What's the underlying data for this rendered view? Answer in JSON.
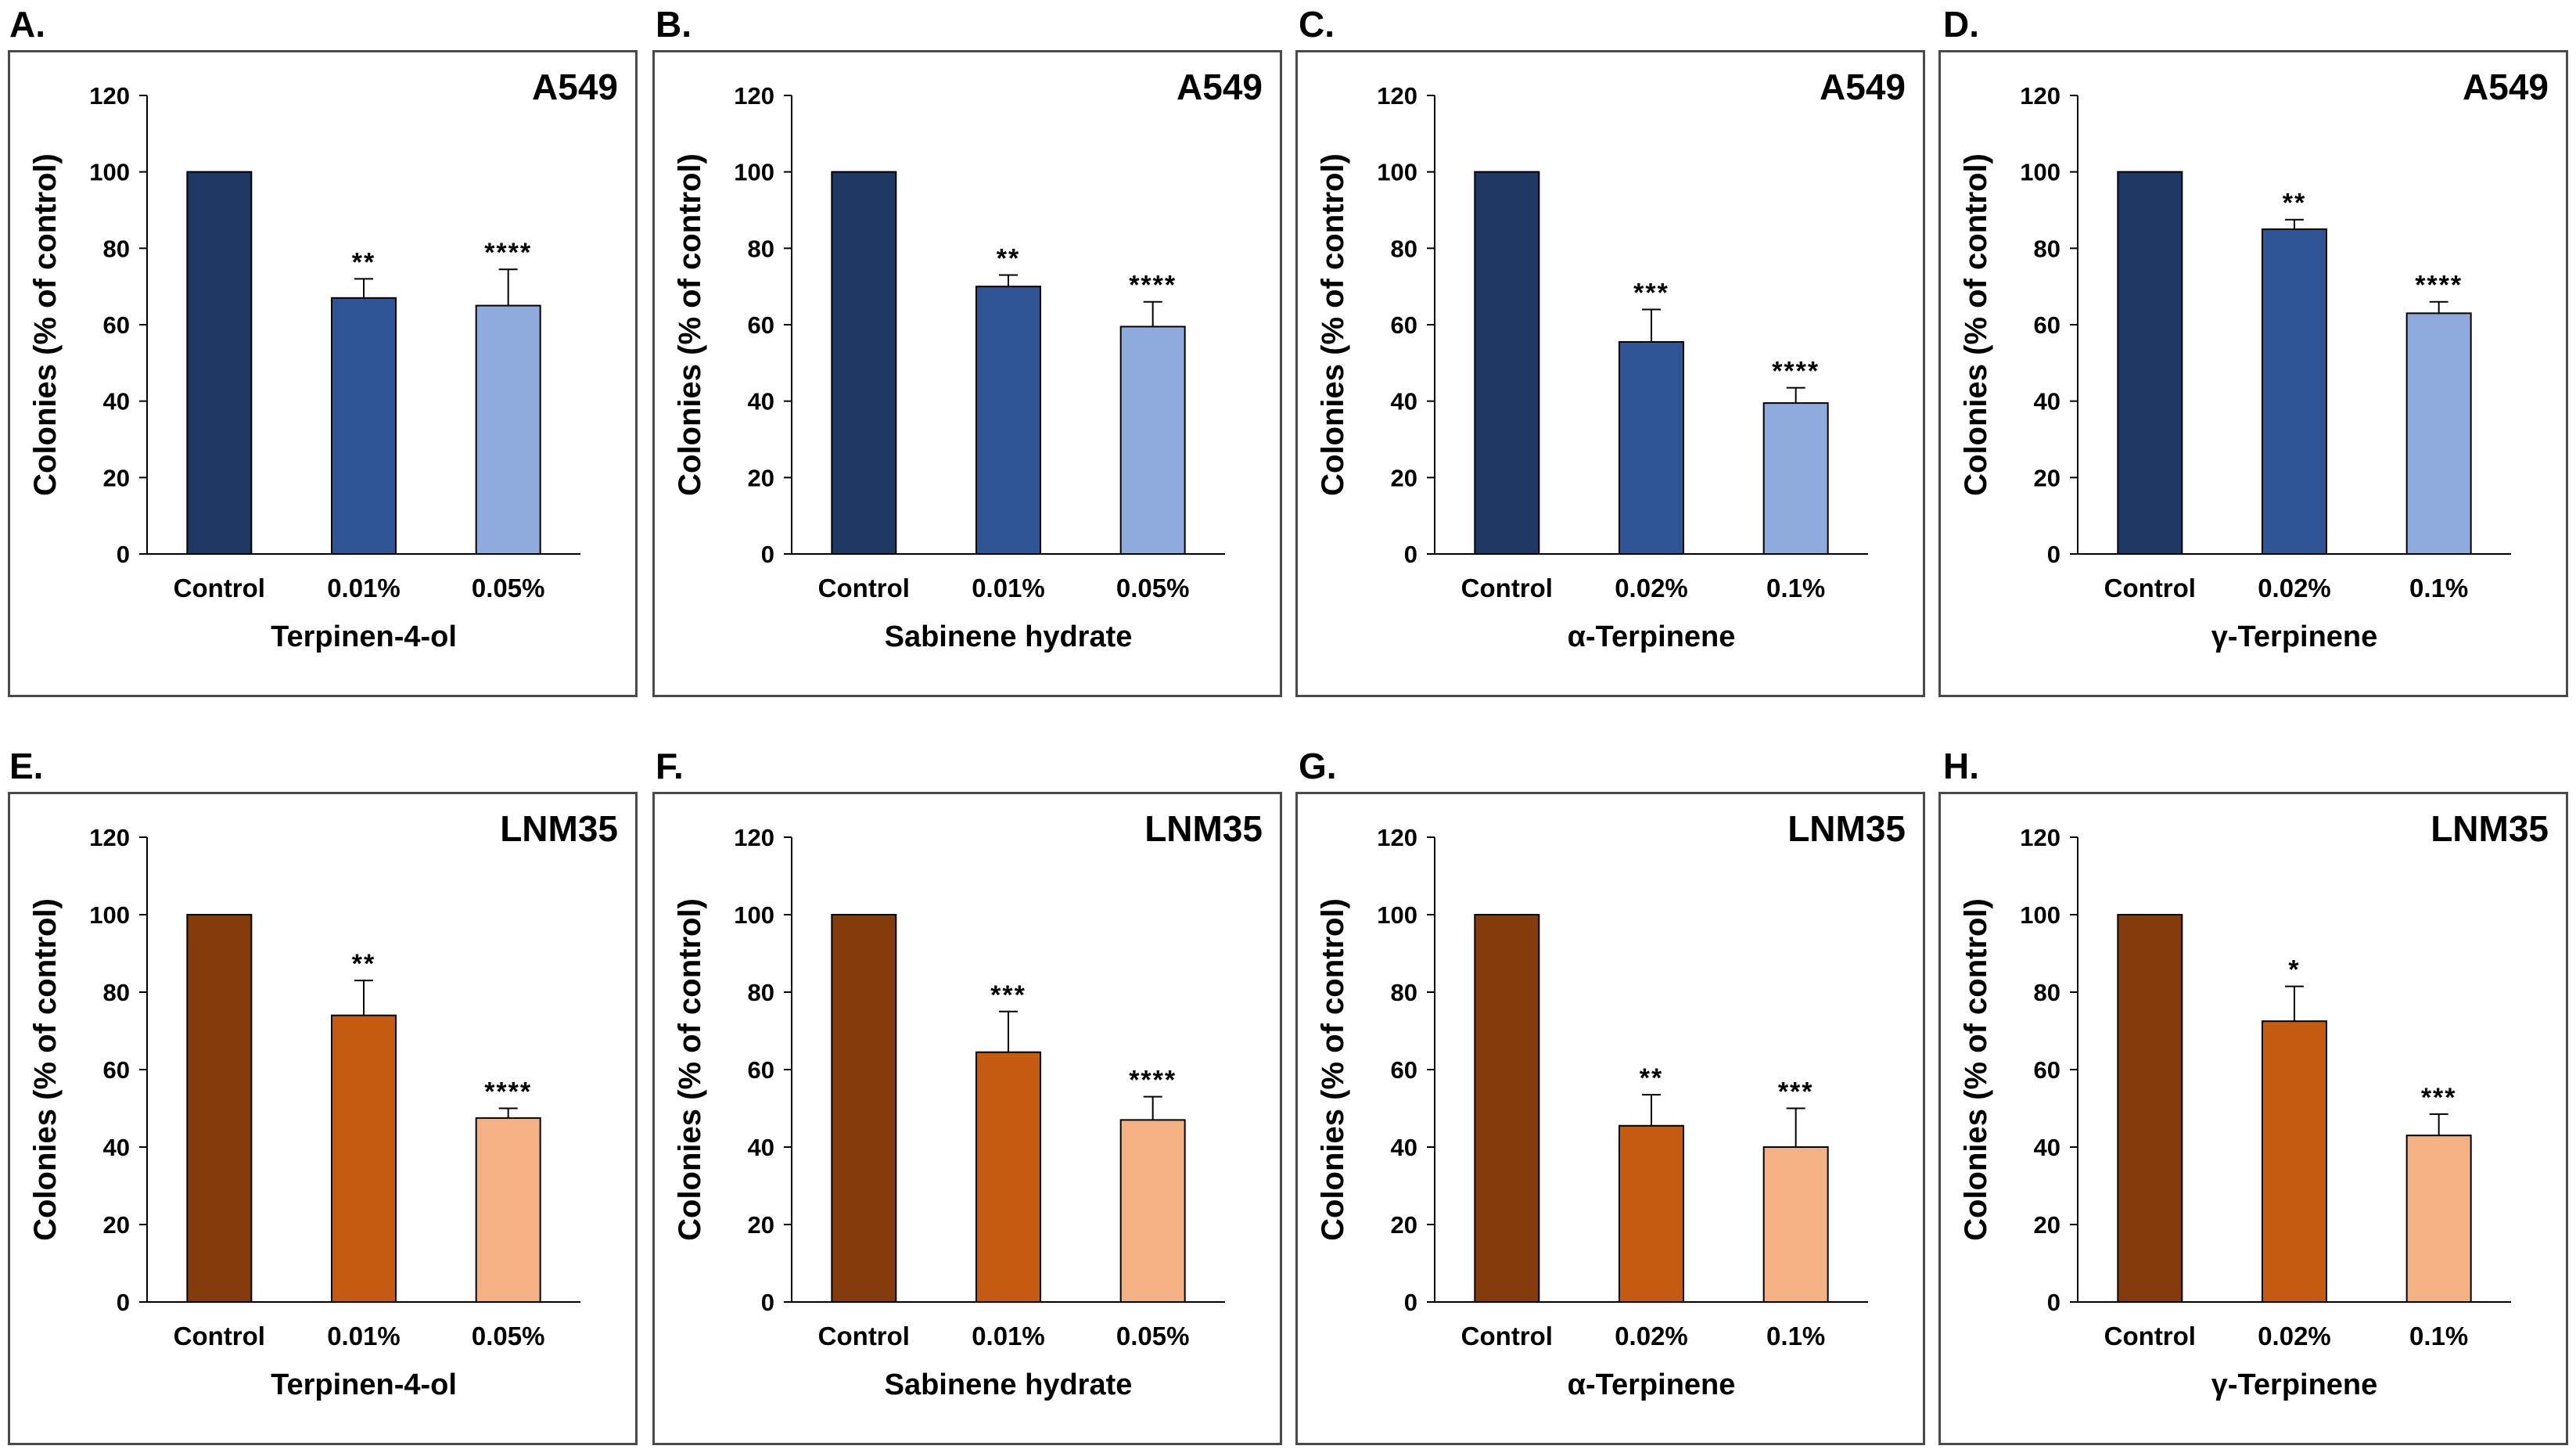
{
  "chart_data": [
    {
      "panel": "A.",
      "type": "bar",
      "cell_line": "A549",
      "xlabel": "Terpinen-4-ol",
      "ylabel": "Colonies (% of control)",
      "ylim": [
        0,
        120
      ],
      "yticks": [
        0,
        20,
        40,
        60,
        80,
        100,
        120
      ],
      "categories": [
        "Control",
        "0.01%",
        "0.05%"
      ],
      "values": [
        100,
        67,
        65
      ],
      "errors": [
        0,
        5,
        9.5
      ],
      "significance": [
        "",
        "**",
        "****"
      ],
      "colors": [
        "#1f3864",
        "#2f5597",
        "#8faadc"
      ]
    },
    {
      "panel": "B.",
      "type": "bar",
      "cell_line": "A549",
      "xlabel": "Sabinene hydrate",
      "ylabel": "Colonies (% of control)",
      "ylim": [
        0,
        120
      ],
      "yticks": [
        0,
        20,
        40,
        60,
        80,
        100,
        120
      ],
      "categories": [
        "Control",
        "0.01%",
        "0.05%"
      ],
      "values": [
        100,
        70,
        59.5
      ],
      "errors": [
        0,
        3,
        6.5
      ],
      "significance": [
        "",
        "**",
        "****"
      ],
      "colors": [
        "#1f3864",
        "#2f5597",
        "#8faadc"
      ]
    },
    {
      "panel": "C.",
      "type": "bar",
      "cell_line": "A549",
      "xlabel": "α-Terpinene",
      "ylabel": "Colonies (% of control)",
      "ylim": [
        0,
        120
      ],
      "yticks": [
        0,
        20,
        40,
        60,
        80,
        100,
        120
      ],
      "categories": [
        "Control",
        "0.02%",
        "0.1%"
      ],
      "values": [
        100,
        55.5,
        39.5
      ],
      "errors": [
        0,
        8.5,
        4
      ],
      "significance": [
        "",
        "***",
        "****"
      ],
      "colors": [
        "#1f3864",
        "#2f5597",
        "#8faadc"
      ]
    },
    {
      "panel": "D.",
      "type": "bar",
      "cell_line": "A549",
      "xlabel": "γ-Terpinene",
      "ylabel": "Colonies (% of control)",
      "ylim": [
        0,
        120
      ],
      "yticks": [
        0,
        20,
        40,
        60,
        80,
        100,
        120
      ],
      "categories": [
        "Control",
        "0.02%",
        "0.1%"
      ],
      "values": [
        100,
        85,
        63
      ],
      "errors": [
        0,
        2.5,
        3
      ],
      "significance": [
        "",
        "**",
        "****"
      ],
      "colors": [
        "#1f3864",
        "#2f5597",
        "#8faadc"
      ]
    },
    {
      "panel": "E.",
      "type": "bar",
      "cell_line": "LNM35",
      "xlabel": "Terpinen-4-ol",
      "ylabel": "Colonies (% of control)",
      "ylim": [
        0,
        120
      ],
      "yticks": [
        0,
        20,
        40,
        60,
        80,
        100,
        120
      ],
      "categories": [
        "Control",
        "0.01%",
        "0.05%"
      ],
      "values": [
        100,
        74,
        47.5
      ],
      "errors": [
        0,
        9,
        2.5
      ],
      "significance": [
        "",
        "**",
        "****"
      ],
      "colors": [
        "#843c0c",
        "#c55a11",
        "#f4b183"
      ]
    },
    {
      "panel": "F.",
      "type": "bar",
      "cell_line": "LNM35",
      "xlabel": "Sabinene hydrate",
      "ylabel": "Colonies (% of control)",
      "ylim": [
        0,
        120
      ],
      "yticks": [
        0,
        20,
        40,
        60,
        80,
        100,
        120
      ],
      "categories": [
        "Control",
        "0.01%",
        "0.05%"
      ],
      "values": [
        100,
        64.5,
        47
      ],
      "errors": [
        0,
        10.5,
        6
      ],
      "significance": [
        "",
        "***",
        "****"
      ],
      "colors": [
        "#843c0c",
        "#c55a11",
        "#f4b183"
      ]
    },
    {
      "panel": "G.",
      "type": "bar",
      "cell_line": "LNM35",
      "xlabel": "α-Terpinene",
      "ylabel": "Colonies (% of control)",
      "ylim": [
        0,
        120
      ],
      "yticks": [
        0,
        20,
        40,
        60,
        80,
        100,
        120
      ],
      "categories": [
        "Control",
        "0.02%",
        "0.1%"
      ],
      "values": [
        100,
        45.5,
        40
      ],
      "errors": [
        0,
        8,
        10
      ],
      "significance": [
        "",
        "**",
        "***"
      ],
      "colors": [
        "#843c0c",
        "#c55a11",
        "#f4b183"
      ]
    },
    {
      "panel": "H.",
      "type": "bar",
      "cell_line": "LNM35",
      "xlabel": "γ-Terpinene",
      "ylabel": "Colonies (% of control)",
      "ylim": [
        0,
        120
      ],
      "yticks": [
        0,
        20,
        40,
        60,
        80,
        100,
        120
      ],
      "categories": [
        "Control",
        "0.02%",
        "0.1%"
      ],
      "values": [
        100,
        72.5,
        43
      ],
      "errors": [
        0,
        9,
        5.5
      ],
      "significance": [
        "",
        "*",
        "***"
      ],
      "colors": [
        "#843c0c",
        "#c55a11",
        "#f4b183"
      ]
    }
  ]
}
